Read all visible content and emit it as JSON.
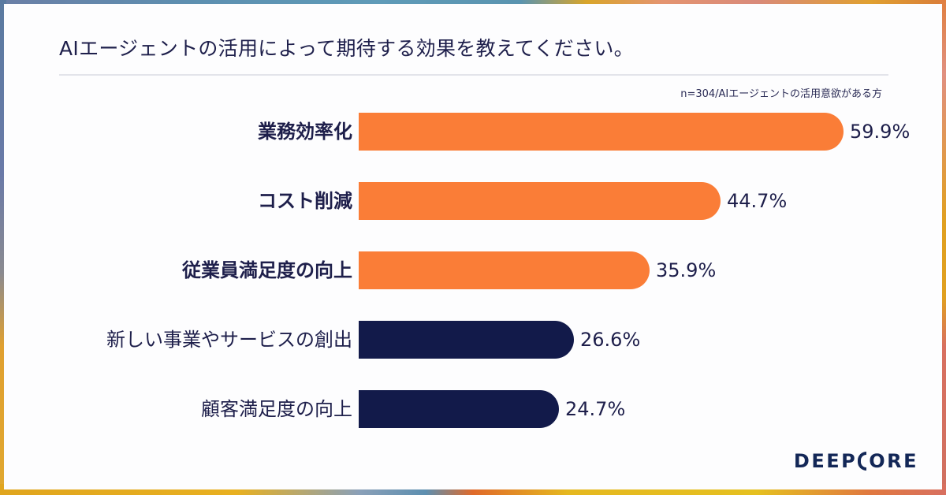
{
  "title": "AIエージェントの活用によって期待する効果を教えてください。",
  "note": "n=304/AIエージェントの活用意欲がある方",
  "colors": {
    "highlight": "#fa7d37",
    "base": "#121a4a",
    "text": "#1e1f4b",
    "logo": "#132757"
  },
  "logo": {
    "left": "DEEP",
    "right": "ORE"
  },
  "bars": [
    {
      "label": "業務効率化",
      "value_text": "59.9%",
      "value": 59.9,
      "color": "orange",
      "bold": true
    },
    {
      "label": "コスト削減",
      "value_text": "44.7%",
      "value": 44.7,
      "color": "orange",
      "bold": true
    },
    {
      "label": "従業員満足度の向上",
      "value_text": "35.9%",
      "value": 35.9,
      "color": "orange",
      "bold": true
    },
    {
      "label": "新しい事業やサービスの創出",
      "value_text": "26.6%",
      "value": 26.6,
      "color": "navy",
      "bold": false
    },
    {
      "label": "顧客満足度の向上",
      "value_text": "24.7%",
      "value": 24.7,
      "color": "navy",
      "bold": false
    }
  ],
  "chart_data": {
    "type": "bar",
    "orientation": "horizontal",
    "title": "AIエージェントの活用によって期待する効果を教えてください。",
    "subtitle": "n=304/AIエージェントの活用意欲がある方",
    "categories": [
      "業務効率化",
      "コスト削減",
      "従業員満足度の向上",
      "新しい事業やサービスの創出",
      "顧客満足度の向上"
    ],
    "values": [
      59.9,
      44.7,
      35.9,
      26.6,
      24.7
    ],
    "unit": "%",
    "xlabel": "",
    "ylabel": "",
    "grid": false,
    "legend": null,
    "bar_colors": [
      "#fa7d37",
      "#fa7d37",
      "#fa7d37",
      "#121a4a",
      "#121a4a"
    ],
    "data_labels": [
      "59.9%",
      "44.7%",
      "35.9%",
      "26.6%",
      "24.7%"
    ]
  }
}
